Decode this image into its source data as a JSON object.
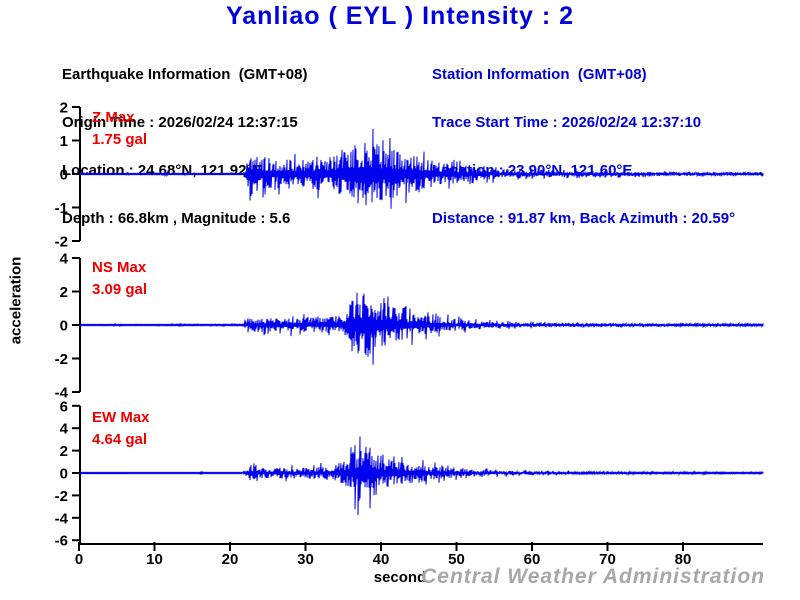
{
  "title": "Yanliao ( EYL ) Intensity : 2",
  "earthquake_info": {
    "heading": "Earthquake Information  (GMT+08)",
    "origin_time": "Origin Time : 2026/02/24 12:37:15",
    "location": "Location : 24.68°N, 121.92°E",
    "depth_magnitude": "Depth : 66.8km , Magnitude : 5.6"
  },
  "station_info": {
    "heading": "Station Information  (GMT+08)",
    "trace_start_time": "Trace Start Time : 2026/02/24 12:37:10",
    "location": "Location : 23.90°N, 121.60°E",
    "distance_azimuth": "Distance : 91.87 km, Back Azimuth : 20.59°"
  },
  "watermark": "Central Weather Administration",
  "colors": {
    "title_blue": "#0000dd",
    "station_blue": "#0000dd",
    "trace_blue": "#0000ee",
    "label_red": "#ee0000",
    "axis_black": "#000000",
    "watermark_gray": "#a8a8a8"
  },
  "chart_data": {
    "type": "line",
    "title": "Yanliao ( EYL ) Intensity : 2",
    "xlabel": "second",
    "ylabel": "acceleration",
    "x_range": [
      0,
      90.5
    ],
    "x_ticks": [
      0,
      10,
      20,
      30,
      40,
      50,
      60,
      70,
      80
    ],
    "grid": false,
    "trace_color": "#0000ee",
    "axis_color": "#000000",
    "units": "gal",
    "traces": [
      {
        "id": "z",
        "label": "Z Max",
        "max_label": "1.75 gal",
        "max_value": 1.75,
        "ylim": [
          -2,
          2
        ],
        "yticks": [
          2,
          1,
          0,
          -1,
          -2
        ],
        "p_onset_s": 22,
        "s_peak_s": 38.6,
        "seed": 42,
        "envelope": [
          [
            0,
            0.012
          ],
          [
            6.2,
            0.012
          ],
          [
            6.5,
            0.07
          ],
          [
            6.8,
            0.012
          ],
          [
            11.8,
            0.05
          ],
          [
            12.2,
            0.012
          ],
          [
            14.0,
            0.05
          ],
          [
            14.4,
            0.015
          ],
          [
            21.6,
            0.015
          ],
          [
            22.1,
            0.25
          ],
          [
            22.5,
            1.45
          ],
          [
            23.2,
            0.8
          ],
          [
            24.5,
            0.85
          ],
          [
            26,
            0.7
          ],
          [
            27.5,
            0.8
          ],
          [
            29,
            0.65
          ],
          [
            31,
            0.75
          ],
          [
            33,
            0.8
          ],
          [
            34.5,
            0.95
          ],
          [
            36,
            1.2
          ],
          [
            37.5,
            1.6
          ],
          [
            38.6,
            1.75
          ],
          [
            39.5,
            1.55
          ],
          [
            40.5,
            1.3
          ],
          [
            41.5,
            1.15
          ],
          [
            43,
            1.0
          ],
          [
            44.5,
            0.85
          ],
          [
            46,
            0.7
          ],
          [
            47.5,
            0.6
          ],
          [
            49,
            0.5
          ],
          [
            51,
            0.4
          ],
          [
            53,
            0.32
          ],
          [
            55,
            0.26
          ],
          [
            57,
            0.22
          ],
          [
            59,
            0.18
          ],
          [
            61,
            0.16
          ],
          [
            63,
            0.14
          ],
          [
            65.5,
            0.13
          ],
          [
            66,
            0.35
          ],
          [
            66.5,
            0.13
          ],
          [
            70,
            0.11
          ],
          [
            75,
            0.1
          ],
          [
            80,
            0.09
          ],
          [
            85,
            0.08
          ],
          [
            90.5,
            0.08
          ]
        ]
      },
      {
        "id": "ns",
        "label": "NS Max",
        "max_label": "3.09 gal",
        "max_value": 3.09,
        "ylim": [
          -4,
          4
        ],
        "yticks": [
          4,
          2,
          0,
          -2,
          -4
        ],
        "p_onset_s": 22,
        "s_peak_s": 37.6,
        "seed": 1337,
        "envelope": [
          [
            0,
            0.01
          ],
          [
            2.5,
            0.01
          ],
          [
            3,
            0.05
          ],
          [
            8,
            0.05
          ],
          [
            12,
            0.06
          ],
          [
            16,
            0.06
          ],
          [
            20,
            0.06
          ],
          [
            21.6,
            0.06
          ],
          [
            22.1,
            0.45
          ],
          [
            23,
            0.75
          ],
          [
            24,
            0.65
          ],
          [
            25.5,
            0.7
          ],
          [
            27,
            0.6
          ],
          [
            28.5,
            0.7
          ],
          [
            30,
            0.72
          ],
          [
            31.5,
            0.65
          ],
          [
            33,
            0.75
          ],
          [
            34.5,
            0.9
          ],
          [
            35.5,
            1.8
          ],
          [
            36.5,
            2.9
          ],
          [
            37.6,
            3.09
          ],
          [
            38.6,
            2.85
          ],
          [
            39.5,
            2.5
          ],
          [
            40.5,
            2.1
          ],
          [
            41.5,
            1.8
          ],
          [
            42.5,
            1.5
          ],
          [
            44,
            1.25
          ],
          [
            45.5,
            1.05
          ],
          [
            47,
            0.85
          ],
          [
            48.5,
            0.7
          ],
          [
            50,
            0.55
          ],
          [
            52,
            0.45
          ],
          [
            54,
            0.36
          ],
          [
            56,
            0.3
          ],
          [
            58,
            0.25
          ],
          [
            60,
            0.22
          ],
          [
            63,
            0.19
          ],
          [
            66,
            0.17
          ],
          [
            70,
            0.15
          ],
          [
            75,
            0.13
          ],
          [
            80,
            0.12
          ],
          [
            85,
            0.11
          ],
          [
            90.5,
            0.1
          ]
        ]
      },
      {
        "id": "ew",
        "label": "EW Max",
        "max_label": "4.64 gal",
        "max_value": 4.64,
        "ylim": [
          -6,
          6
        ],
        "yticks": [
          6,
          4,
          2,
          0,
          -2,
          -4,
          -6
        ],
        "p_onset_s": 22,
        "s_peak_s": 37.9,
        "seed": 2024,
        "envelope": [
          [
            0,
            0.01
          ],
          [
            10,
            0.012
          ],
          [
            15.9,
            0.012
          ],
          [
            16.2,
            0.22
          ],
          [
            16.5,
            0.012
          ],
          [
            21.6,
            0.015
          ],
          [
            22.1,
            0.7
          ],
          [
            22.8,
            1.05
          ],
          [
            23.6,
            0.85
          ],
          [
            25,
            0.75
          ],
          [
            26.5,
            0.8
          ],
          [
            28,
            0.75
          ],
          [
            29.5,
            0.8
          ],
          [
            31,
            0.85
          ],
          [
            32.5,
            0.95
          ],
          [
            34,
            1.3
          ],
          [
            35.2,
            1.7
          ],
          [
            36.2,
            3.0
          ],
          [
            37.2,
            4.3
          ],
          [
            37.9,
            4.64
          ],
          [
            38.7,
            4.1
          ],
          [
            39.4,
            3.1
          ],
          [
            40.2,
            2.3
          ],
          [
            41,
            2.0
          ],
          [
            42,
            1.7
          ],
          [
            43,
            1.45
          ],
          [
            44.3,
            1.25
          ],
          [
            45.3,
            1.45
          ],
          [
            46.5,
            1.0
          ],
          [
            48,
            0.85
          ],
          [
            49.5,
            0.7
          ],
          [
            51,
            0.58
          ],
          [
            53,
            0.46
          ],
          [
            55,
            0.38
          ],
          [
            57,
            0.32
          ],
          [
            59,
            0.27
          ],
          [
            61,
            0.24
          ],
          [
            64,
            0.2
          ],
          [
            68,
            0.17
          ],
          [
            72,
            0.14
          ],
          [
            78,
            0.12
          ],
          [
            85,
            0.11
          ],
          [
            90.5,
            0.1
          ]
        ]
      }
    ]
  }
}
